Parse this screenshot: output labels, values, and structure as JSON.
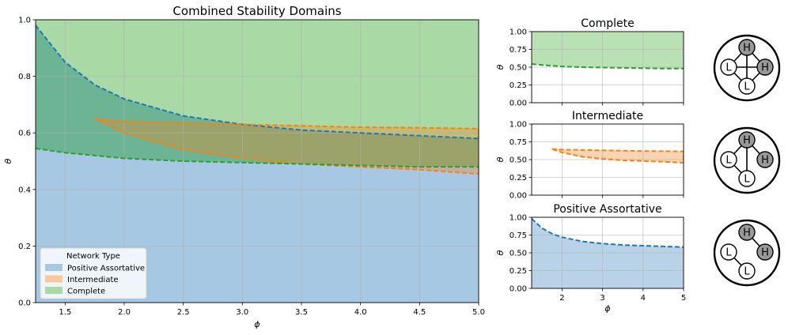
{
  "colors": {
    "blue": "#1f77b4",
    "orange": "#ff7f0e",
    "green": "#2ca02c",
    "blue_fill": "#a6c8e2",
    "orange_fill": "#f8c9a0",
    "green_fill": "#a9d9a4",
    "overlap_green_blue": "#6db495",
    "overlap_all": "#8aa46a"
  },
  "chart_data": [
    {
      "id": "combined",
      "type": "area",
      "title": "Combined Stability Domains",
      "xlabel": "ϕ",
      "ylabel": "θ",
      "xlim": [
        1.25,
        5.0
      ],
      "ylim": [
        0.0,
        1.0
      ],
      "xticks": [
        "1.5",
        "2.0",
        "2.5",
        "3.0",
        "3.5",
        "4.0",
        "4.5",
        "5.0"
      ],
      "yticks": [
        "0.0",
        "0.2",
        "0.4",
        "0.6",
        "0.8",
        "1.0"
      ],
      "grid": true,
      "legend": {
        "title": "Network Type",
        "placement": "lower-left",
        "entries": [
          "Positive Assortative",
          "Intermediate",
          "Complete"
        ]
      },
      "series": [
        {
          "name": "Positive Assortative",
          "region": "below curve",
          "x": [
            1.25,
            1.5,
            1.75,
            2.0,
            2.5,
            3.0,
            3.5,
            4.0,
            4.5,
            5.0
          ],
          "y": [
            0.98,
            0.85,
            0.77,
            0.72,
            0.66,
            0.63,
            0.61,
            0.6,
            0.59,
            0.58
          ]
        },
        {
          "name": "Intermediate",
          "region": "between curves",
          "x": [
            1.75,
            2.0,
            2.5,
            3.0,
            3.5,
            4.0,
            4.5,
            5.0
          ],
          "y_upper": [
            0.65,
            0.64,
            0.635,
            0.63,
            0.625,
            0.62,
            0.618,
            0.615
          ],
          "y_lower": [
            0.65,
            0.6,
            0.54,
            0.51,
            0.49,
            0.48,
            0.47,
            0.455
          ]
        },
        {
          "name": "Complete",
          "region": "above curve",
          "x": [
            1.25,
            1.5,
            2.0,
            2.5,
            3.0,
            3.5,
            4.0,
            4.5,
            5.0
          ],
          "y": [
            0.545,
            0.53,
            0.51,
            0.5,
            0.495,
            0.49,
            0.485,
            0.48,
            0.48
          ]
        }
      ]
    },
    {
      "id": "complete",
      "type": "area",
      "title": "Complete",
      "xlabel": "",
      "ylabel": "θ",
      "xlim": [
        1.25,
        5.0
      ],
      "ylim": [
        0.0,
        1.0
      ],
      "yticks": [
        "0.00",
        "0.25",
        "0.50",
        "0.75",
        "1.00"
      ],
      "grid": true,
      "series": [
        {
          "name": "Complete",
          "region": "above curve",
          "x": [
            1.25,
            1.5,
            2.0,
            2.5,
            3.0,
            3.5,
            4.0,
            4.5,
            5.0
          ],
          "y": [
            0.545,
            0.53,
            0.51,
            0.5,
            0.495,
            0.49,
            0.485,
            0.48,
            0.48
          ]
        }
      ]
    },
    {
      "id": "intermediate",
      "type": "area",
      "title": "Intermediate",
      "xlabel": "",
      "ylabel": "θ",
      "xlim": [
        1.25,
        5.0
      ],
      "ylim": [
        0.0,
        1.0
      ],
      "yticks": [
        "0.00",
        "0.25",
        "0.50",
        "0.75",
        "1.00"
      ],
      "grid": true,
      "series": [
        {
          "name": "Intermediate",
          "region": "between curves",
          "x": [
            1.75,
            2.0,
            2.5,
            3.0,
            3.5,
            4.0,
            4.5,
            5.0
          ],
          "y_upper": [
            0.65,
            0.64,
            0.635,
            0.63,
            0.625,
            0.62,
            0.618,
            0.615
          ],
          "y_lower": [
            0.65,
            0.6,
            0.54,
            0.51,
            0.49,
            0.48,
            0.47,
            0.455
          ]
        }
      ]
    },
    {
      "id": "positive",
      "type": "area",
      "title": "Positive Assortative",
      "xlabel": "ϕ",
      "ylabel": "θ",
      "xlim": [
        1.25,
        5.0
      ],
      "ylim": [
        0.0,
        1.0
      ],
      "xticks": [
        "2",
        "3",
        "4",
        "5"
      ],
      "yticks": [
        "0.00",
        "0.25",
        "0.50",
        "0.75",
        "1.00"
      ],
      "grid": true,
      "series": [
        {
          "name": "Positive Assortative",
          "region": "below curve",
          "x": [
            1.25,
            1.5,
            1.75,
            2.0,
            2.5,
            3.0,
            3.5,
            4.0,
            4.5,
            5.0
          ],
          "y": [
            0.98,
            0.85,
            0.77,
            0.72,
            0.66,
            0.63,
            0.61,
            0.6,
            0.59,
            0.58
          ]
        }
      ]
    }
  ],
  "networks": [
    {
      "id": "complete",
      "nodes": [
        {
          "label": "H",
          "kind": "high"
        },
        {
          "label": "H",
          "kind": "high"
        },
        {
          "label": "L",
          "kind": "low"
        },
        {
          "label": "L",
          "kind": "low"
        }
      ],
      "edges": [
        [
          0,
          1
        ],
        [
          0,
          2
        ],
        [
          0,
          3
        ],
        [
          1,
          2
        ],
        [
          1,
          3
        ],
        [
          2,
          3
        ]
      ]
    },
    {
      "id": "intermediate",
      "nodes": [
        {
          "label": "H",
          "kind": "high"
        },
        {
          "label": "H",
          "kind": "high"
        },
        {
          "label": "L",
          "kind": "low"
        },
        {
          "label": "L",
          "kind": "low"
        }
      ],
      "edges": [
        [
          0,
          1
        ],
        [
          0,
          2
        ],
        [
          0,
          3
        ],
        [
          2,
          3
        ]
      ]
    },
    {
      "id": "positive",
      "nodes": [
        {
          "label": "H",
          "kind": "high"
        },
        {
          "label": "H",
          "kind": "high"
        },
        {
          "label": "L",
          "kind": "low"
        },
        {
          "label": "L",
          "kind": "low"
        }
      ],
      "edges": [
        [
          0,
          1
        ],
        [
          2,
          3
        ]
      ]
    }
  ]
}
